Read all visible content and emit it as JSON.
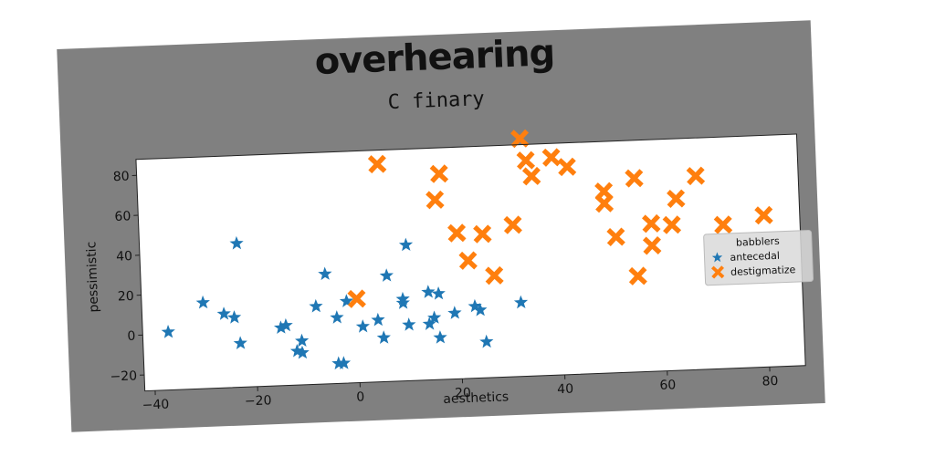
{
  "chart_data": {
    "type": "scatter",
    "suptitle": "overhearing",
    "title": "C finary",
    "xlabel": "aesthetics",
    "ylabel": "pessimistic",
    "xlim": [
      -42,
      87
    ],
    "ylim": [
      -28,
      88
    ],
    "xticks": [
      -40,
      -20,
      0,
      20,
      40,
      60,
      80
    ],
    "yticks": [
      -20,
      0,
      20,
      40,
      60,
      80
    ],
    "legend": {
      "title": "babblers",
      "placement": "right"
    },
    "series": [
      {
        "name": "antecedal",
        "marker": "star",
        "color": "#1f77b4",
        "points": [
          [
            -37,
            1
          ],
          [
            -30,
            15
          ],
          [
            -26,
            9
          ],
          [
            -24,
            7
          ],
          [
            -23,
            -6
          ],
          [
            -23,
            44
          ],
          [
            -15,
            1
          ],
          [
            -14,
            2
          ],
          [
            -12,
            -11
          ],
          [
            -11,
            -12
          ],
          [
            -11,
            -6
          ],
          [
            -8,
            11
          ],
          [
            -6,
            27
          ],
          [
            -4,
            5
          ],
          [
            -3,
            -18
          ],
          [
            -4,
            -18
          ],
          [
            -2,
            13
          ],
          [
            1,
            0
          ],
          [
            4,
            3
          ],
          [
            5,
            -6
          ],
          [
            6,
            25
          ],
          [
            9,
            11
          ],
          [
            9,
            13
          ],
          [
            10,
            40
          ],
          [
            10,
            0
          ],
          [
            14,
            0
          ],
          [
            14,
            16
          ],
          [
            15,
            3
          ],
          [
            16,
            15
          ],
          [
            16,
            -7
          ],
          [
            19,
            5
          ],
          [
            23,
            8
          ],
          [
            24,
            6
          ],
          [
            25,
            -10
          ],
          [
            32,
            9
          ]
        ]
      },
      {
        "name": "destigmatize",
        "marker": "x",
        "color": "#ff7f0e",
        "points": [
          [
            0,
            14
          ],
          [
            5,
            81
          ],
          [
            16,
            62
          ],
          [
            17,
            75
          ],
          [
            20,
            45
          ],
          [
            22,
            31
          ],
          [
            25,
            44
          ],
          [
            27,
            23
          ],
          [
            31,
            48
          ],
          [
            33,
            91
          ],
          [
            34,
            80
          ],
          [
            35,
            72
          ],
          [
            39,
            81
          ],
          [
            42,
            76
          ],
          [
            49,
            63
          ],
          [
            49,
            57
          ],
          [
            51,
            40
          ],
          [
            55,
            20
          ],
          [
            55,
            69
          ],
          [
            58,
            46
          ],
          [
            58,
            35
          ],
          [
            62,
            45
          ],
          [
            63,
            58
          ],
          [
            67,
            69
          ],
          [
            72,
            44
          ],
          [
            80,
            48
          ]
        ]
      }
    ]
  }
}
